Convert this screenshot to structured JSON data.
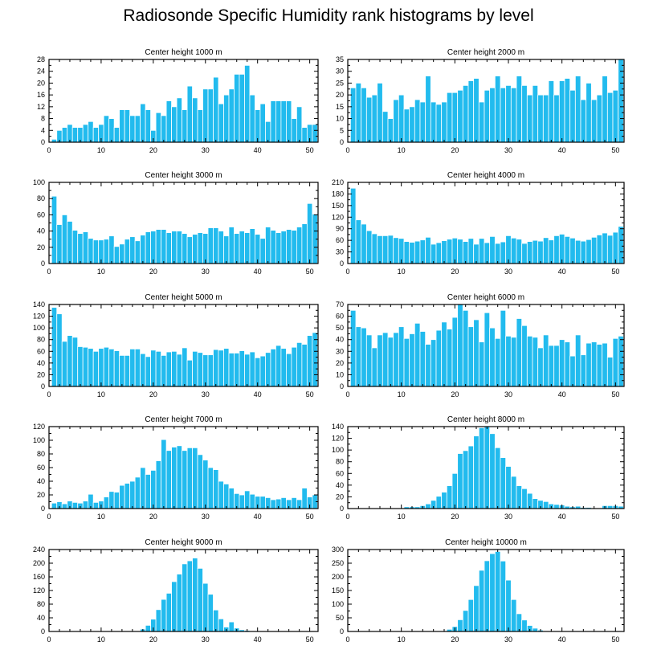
{
  "title": "Radiosonde Specific Humidity rank histograms by level",
  "colors": {
    "bar": "#22bbee",
    "bar_edge": "#ffffff",
    "axis": "#000000"
  },
  "chart_data": [
    {
      "type": "bar",
      "title": "Center height 1000 m",
      "x": "ranks 1-51",
      "ylim": [
        0,
        28
      ],
      "yticks": [
        0,
        4,
        8,
        12,
        16,
        20,
        24,
        28
      ],
      "xticks": [
        0,
        10,
        20,
        30,
        40,
        50
      ],
      "values": [
        1,
        4,
        5,
        6,
        5,
        5,
        6,
        7,
        5,
        6,
        9,
        8,
        5,
        11,
        11,
        9,
        9,
        13,
        11,
        4,
        10,
        9,
        14,
        12,
        15,
        11,
        19,
        15,
        11,
        18,
        18,
        22,
        13,
        16,
        18,
        23,
        23,
        26,
        16,
        11,
        13,
        7,
        14,
        14,
        14,
        14,
        8,
        12,
        5,
        6,
        6
      ]
    },
    {
      "type": "bar",
      "title": "Center height 2000 m",
      "x": "ranks 1-51",
      "ylim": [
        0,
        35
      ],
      "yticks": [
        0,
        5,
        10,
        15,
        20,
        25,
        30,
        35
      ],
      "xticks": [
        0,
        10,
        20,
        30,
        40,
        50
      ],
      "values": [
        23,
        25,
        23,
        19,
        20,
        25,
        13,
        10,
        18,
        20,
        14,
        15,
        18,
        17,
        28,
        17,
        16,
        17,
        21,
        21,
        22,
        24,
        26,
        27,
        17,
        22,
        23,
        28,
        23,
        24,
        23,
        28,
        24,
        20,
        24,
        20,
        20,
        26,
        20,
        26,
        27,
        22,
        28,
        18,
        25,
        18,
        20,
        28,
        21,
        22,
        35
      ]
    },
    {
      "type": "bar",
      "title": "Center height 3000 m",
      "x": "ranks 1-51",
      "ylim": [
        0,
        100
      ],
      "yticks": [
        0,
        20,
        40,
        60,
        80,
        100
      ],
      "xticks": [
        0,
        10,
        20,
        30,
        40,
        50
      ],
      "values": [
        83,
        48,
        60,
        52,
        41,
        37,
        39,
        31,
        29,
        29,
        30,
        34,
        21,
        24,
        30,
        33,
        28,
        35,
        39,
        40,
        42,
        42,
        38,
        40,
        40,
        37,
        33,
        36,
        38,
        37,
        44,
        44,
        40,
        34,
        45,
        37,
        40,
        38,
        43,
        36,
        31,
        45,
        41,
        38,
        40,
        42,
        41,
        45,
        49,
        74,
        61
      ]
    },
    {
      "type": "bar",
      "title": "Center height 4000 m",
      "x": "ranks 1-51",
      "ylim": [
        0,
        210
      ],
      "yticks": [
        0,
        30,
        60,
        90,
        120,
        150,
        180,
        210
      ],
      "xticks": [
        0,
        10,
        20,
        30,
        40,
        50
      ],
      "values": [
        195,
        113,
        102,
        85,
        77,
        72,
        72,
        73,
        67,
        65,
        57,
        55,
        58,
        61,
        68,
        50,
        54,
        59,
        63,
        66,
        63,
        57,
        65,
        50,
        65,
        54,
        70,
        52,
        56,
        72,
        66,
        63,
        52,
        57,
        60,
        58,
        67,
        61,
        72,
        76,
        70,
        66,
        60,
        58,
        62,
        68,
        74,
        79,
        73,
        81,
        96
      ]
    },
    {
      "type": "bar",
      "title": "Center height 5000 m",
      "x": "ranks 1-51",
      "ylim": [
        0,
        140
      ],
      "yticks": [
        0,
        20,
        40,
        60,
        80,
        100,
        120,
        140
      ],
      "xticks": [
        0,
        10,
        20,
        30,
        40,
        50
      ],
      "values": [
        135,
        124,
        77,
        87,
        84,
        68,
        67,
        65,
        60,
        65,
        67,
        64,
        61,
        53,
        53,
        64,
        64,
        56,
        51,
        62,
        60,
        53,
        59,
        60,
        55,
        66,
        45,
        60,
        58,
        54,
        54,
        63,
        62,
        65,
        57,
        57,
        61,
        55,
        59,
        49,
        52,
        58,
        64,
        70,
        65,
        56,
        67,
        75,
        72,
        87,
        92
      ]
    },
    {
      "type": "bar",
      "title": "Center height 6000 m",
      "x": "ranks 1-51",
      "ylim": [
        0,
        70
      ],
      "yticks": [
        0,
        10,
        20,
        30,
        40,
        50,
        60,
        70
      ],
      "xticks": [
        0,
        10,
        20,
        30,
        40,
        50
      ],
      "values": [
        65,
        51,
        50,
        44,
        33,
        44,
        46,
        42,
        46,
        51,
        41,
        45,
        54,
        47,
        36,
        40,
        48,
        55,
        49,
        59,
        70,
        65,
        51,
        57,
        38,
        63,
        50,
        41,
        65,
        43,
        42,
        58,
        52,
        43,
        42,
        33,
        44,
        35,
        35,
        40,
        38,
        26,
        44,
        27,
        37,
        38,
        36,
        37,
        25,
        41,
        43
      ]
    },
    {
      "type": "bar",
      "title": "Center height 7000 m",
      "x": "ranks 1-51",
      "ylim": [
        0,
        120
      ],
      "yticks": [
        0,
        20,
        40,
        60,
        80,
        100,
        120
      ],
      "xticks": [
        0,
        10,
        20,
        30,
        40,
        50
      ],
      "values": [
        8,
        10,
        7,
        11,
        9,
        8,
        11,
        21,
        9,
        11,
        17,
        25,
        24,
        34,
        37,
        40,
        46,
        60,
        50,
        56,
        70,
        101,
        85,
        90,
        92,
        85,
        89,
        89,
        79,
        71,
        60,
        57,
        40,
        36,
        30,
        22,
        20,
        26,
        21,
        18,
        18,
        16,
        13,
        14,
        16,
        13,
        16,
        13,
        30,
        17,
        20
      ]
    },
    {
      "type": "bar",
      "title": "Center height 8000 m",
      "x": "ranks 1-51",
      "ylim": [
        0,
        140
      ],
      "yticks": [
        0,
        20,
        40,
        60,
        80,
        100,
        120,
        140
      ],
      "xticks": [
        0,
        10,
        20,
        30,
        40,
        50
      ],
      "values": [
        0,
        0,
        0,
        0,
        0,
        0,
        0,
        0,
        0,
        1,
        3,
        3,
        3,
        5,
        8,
        14,
        21,
        28,
        39,
        60,
        94,
        99,
        107,
        124,
        138,
        140,
        128,
        104,
        87,
        72,
        55,
        39,
        34,
        26,
        17,
        14,
        12,
        8,
        7,
        6,
        4,
        3,
        4,
        2,
        2,
        1,
        1,
        5,
        5,
        5,
        4
      ]
    },
    {
      "type": "bar",
      "title": "Center height 9000 m",
      "x": "ranks 1-51",
      "ylim": [
        0,
        240
      ],
      "yticks": [
        0,
        40,
        80,
        120,
        160,
        200,
        240
      ],
      "xticks": [
        0,
        10,
        20,
        30,
        40,
        50
      ],
      "values": [
        0,
        0,
        0,
        0,
        0,
        0,
        0,
        0,
        0,
        0,
        0,
        0,
        0,
        0,
        0,
        0,
        2,
        7,
        18,
        36,
        64,
        94,
        112,
        146,
        168,
        198,
        207,
        215,
        185,
        141,
        109,
        63,
        37,
        13,
        28,
        10,
        5,
        3,
        2,
        0,
        0,
        0,
        0,
        0,
        0,
        0,
        0,
        0,
        0,
        0,
        0
      ]
    },
    {
      "type": "bar",
      "title": "Center height 10000 m",
      "x": "ranks 1-51",
      "ylim": [
        0,
        300
      ],
      "yticks": [
        0,
        50,
        100,
        150,
        200,
        250,
        300
      ],
      "xticks": [
        0,
        10,
        20,
        30,
        40,
        50
      ],
      "values": [
        0,
        0,
        0,
        0,
        0,
        0,
        0,
        0,
        0,
        0,
        0,
        0,
        0,
        0,
        0,
        0,
        0,
        2,
        8,
        18,
        43,
        77,
        117,
        168,
        224,
        259,
        285,
        293,
        258,
        188,
        117,
        65,
        42,
        22,
        12,
        5,
        2,
        0,
        0,
        0,
        0,
        0,
        0,
        0,
        0,
        0,
        0,
        0,
        0,
        0,
        0
      ]
    }
  ]
}
